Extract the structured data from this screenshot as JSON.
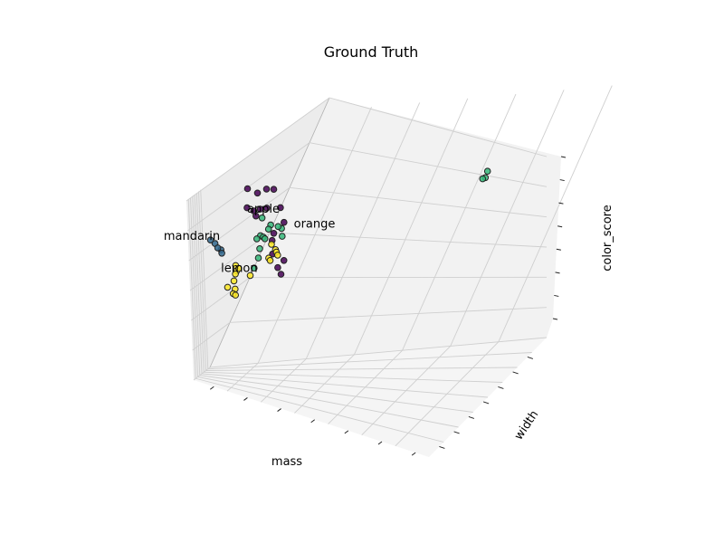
{
  "chart_data": {
    "type": "scatter",
    "projection": "3d",
    "title": "Ground Truth",
    "xlabel": "mass",
    "ylabel": "width",
    "zlabel": "color_score",
    "grid": true,
    "tick_labels_visible": false,
    "colormap": "viridis",
    "class_colors": {
      "apple": "#440154",
      "mandarin": "#31688e",
      "orange": "#35b779",
      "lemon": "#fde725"
    },
    "annotations": [
      {
        "text": "apple",
        "class": "apple"
      },
      {
        "text": "mandarin",
        "class": "mandarin"
      },
      {
        "text": "orange",
        "class": "orange"
      },
      {
        "text": "lemon",
        "class": "lemon"
      }
    ],
    "series": [
      {
        "class": "apple",
        "points": [
          [
            60.9,
            8.9,
            0.9
          ],
          [
            62.4,
            8.8,
            0.86
          ],
          [
            62.8,
            8.2,
            0.88
          ],
          [
            63.3,
            7.8,
            0.87
          ],
          [
            61.1,
            9.0,
            0.76
          ],
          [
            61.3,
            8.5,
            0.73
          ],
          [
            63.3,
            8.4,
            0.74
          ],
          [
            61.7,
            8.5,
            0.69
          ],
          [
            63.1,
            8.9,
            0.74
          ],
          [
            64.3,
            7.7,
            0.73
          ],
          [
            65.5,
            8.0,
            0.62
          ],
          [
            65.1,
            8.7,
            0.55
          ],
          [
            65.4,
            9.0,
            0.5
          ],
          [
            65.7,
            9.1,
            0.4
          ],
          [
            67.9,
            9.8,
            0.3
          ],
          [
            69.6,
            10.2,
            0.35
          ],
          [
            69.0,
            10.1,
            0.25
          ]
        ]
      },
      {
        "class": "mandarin",
        "points": [
          [
            52.1,
            7.3,
            0.54
          ],
          [
            52.7,
            7.2,
            0.51
          ],
          [
            53.9,
            7.3,
            0.46
          ],
          [
            52.6,
            6.5,
            0.43
          ],
          [
            54.6,
            8.0,
            0.48
          ]
        ]
      },
      {
        "class": "orange",
        "points": [
          [
            62.2,
            8.2,
            0.67
          ],
          [
            63.3,
            8.0,
            0.61
          ],
          [
            62.6,
            7.8,
            0.58
          ],
          [
            62.0,
            8.2,
            0.54
          ],
          [
            63.2,
            8.6,
            0.53
          ],
          [
            61.5,
            7.5,
            0.51
          ],
          [
            61.6,
            8.3,
            0.52
          ],
          [
            60.5,
            7.4,
            0.44
          ],
          [
            59.6,
            7.0,
            0.37
          ],
          [
            59.3,
            7.2,
            0.3
          ],
          [
            66.2,
            8.6,
            0.58
          ],
          [
            66.7,
            9.2,
            0.6
          ],
          [
            65.8,
            8.3,
            0.52
          ],
          [
            100.0,
            8.5,
            0.85
          ],
          [
            98.4,
            7.8,
            0.8
          ],
          [
            96.7,
            7.1,
            0.79
          ]
        ]
      },
      {
        "class": "lemon",
        "points": [
          [
            64.6,
            8.6,
            0.47
          ],
          [
            66.0,
            9.0,
            0.43
          ],
          [
            65.8,
            8.8,
            0.41
          ],
          [
            67.1,
            9.4,
            0.39
          ],
          [
            64.2,
            8.6,
            0.37
          ],
          [
            63.9,
            8.3,
            0.35
          ],
          [
            55.5,
            6.8,
            0.33
          ],
          [
            55.7,
            6.8,
            0.29
          ],
          [
            56.4,
            7.3,
            0.27
          ],
          [
            56.0,
            7.2,
            0.22
          ],
          [
            55.7,
            7.6,
            0.18
          ],
          [
            56.6,
            7.4,
            0.16
          ],
          [
            57.2,
            7.9,
            0.13
          ],
          [
            58.3,
            8.3,
            0.12
          ],
          [
            57.1,
            7.4,
            0.31
          ],
          [
            59.4,
            7.6,
            0.25
          ]
        ]
      }
    ]
  }
}
